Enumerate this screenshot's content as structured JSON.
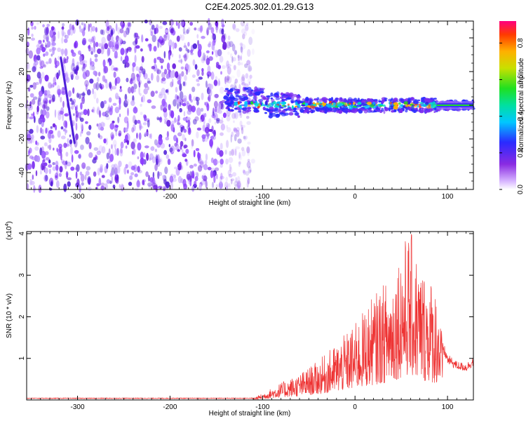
{
  "title": "C2E4.2025.302.01.29.G13",
  "chart_data": [
    {
      "type": "heatmap",
      "name": "spectrogram",
      "title": "C2E4.2025.302.01.29.G13",
      "xlabel": "Height of straight line (km)",
      "ylabel": "Frequency (Hz)",
      "xlim": [
        -355,
        128
      ],
      "ylim": [
        -50,
        50
      ],
      "xticks": [
        -300,
        -200,
        -100,
        0,
        100
      ],
      "yticks": [
        -40,
        -20,
        0,
        20,
        40
      ],
      "colorbar": {
        "label": "Normalized spectral amplitude",
        "range": [
          0,
          0.92
        ],
        "ticks": [
          "0.0",
          "0.2",
          "0.4",
          "0.6",
          "0.8"
        ],
        "tick_values": [
          0.0,
          0.2,
          0.4,
          0.6,
          0.8
        ]
      },
      "noise_region_km": [
        -355,
        -120
      ],
      "signal_band_hz": [
        -5,
        5
      ],
      "signal_region_km": [
        -140,
        128
      ]
    },
    {
      "type": "line",
      "name": "snr",
      "xlabel": "Height of straight line (km)",
      "ylabel": "SNR (10 * v/v)",
      "yscale_label": "(x10",
      "yscale_exp": "4",
      "yscale_close": ")",
      "xlim": [
        -355,
        128
      ],
      "ylim": [
        0,
        4.05
      ],
      "xticks": [
        -300,
        -200,
        -100,
        0,
        100
      ],
      "yticks": [
        1,
        2,
        3,
        4
      ],
      "color": "#ee3333",
      "envelope": {
        "x": [
          -355,
          -110,
          -100,
          -80,
          -60,
          -40,
          -20,
          0,
          20,
          40,
          50,
          60,
          70,
          80,
          90,
          95,
          100,
          110,
          120,
          128
        ],
        "y": [
          0.03,
          0.05,
          0.15,
          0.4,
          0.6,
          0.9,
          1.3,
          1.75,
          2.4,
          2.9,
          3.6,
          3.9,
          3.1,
          2.9,
          2.5,
          1.3,
          1.0,
          0.85,
          0.8,
          0.95
        ]
      }
    }
  ],
  "colors": {
    "noise": "#7a2cf0",
    "signal_core": "#ff2020"
  }
}
